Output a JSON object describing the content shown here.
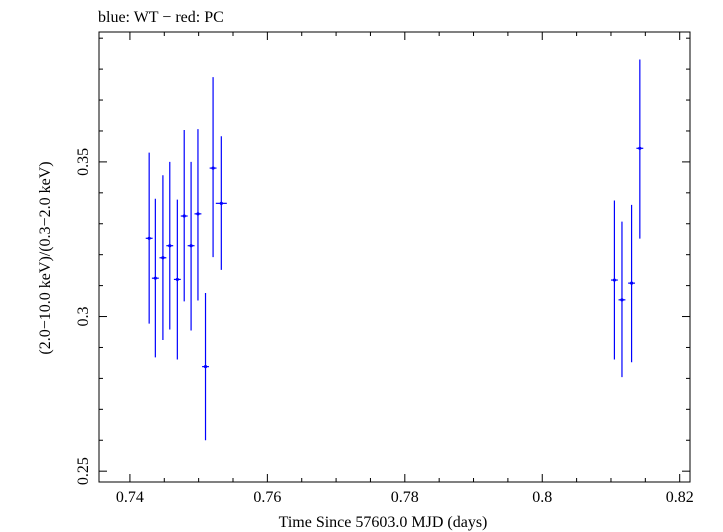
{
  "chart_data": {
    "type": "scatter",
    "title": "blue: WT − red: PC",
    "xlabel": "Time Since 57603.0 MJD (days)",
    "ylabel": "(2.0−10.0 keV)/(0.3−2.0 keV)",
    "xlim": [
      0.7355,
      0.8215
    ],
    "ylim": [
      0.2465,
      0.392
    ],
    "x_ticks": [
      0.74,
      0.76,
      0.78,
      0.8,
      0.82
    ],
    "x_tick_labels": [
      "0.74",
      "0.76",
      "0.78",
      "0.8",
      "0.82"
    ],
    "y_ticks": [
      0.25,
      0.3,
      0.35
    ],
    "y_tick_labels": [
      "0.25",
      "0.3",
      "0.35"
    ],
    "grid": false,
    "series": [
      {
        "name": "WT",
        "color": "#0000ff",
        "points": [
          {
            "x": 0.7428,
            "y": 0.3253,
            "xerr": 0.0005,
            "ylo": 0.2977,
            "yhi": 0.353
          },
          {
            "x": 0.7437,
            "y": 0.3124,
            "xerr": 0.0005,
            "ylo": 0.2868,
            "yhi": 0.3381
          },
          {
            "x": 0.7448,
            "y": 0.319,
            "xerr": 0.0005,
            "ylo": 0.2924,
            "yhi": 0.3457
          },
          {
            "x": 0.7458,
            "y": 0.3229,
            "xerr": 0.0005,
            "ylo": 0.2958,
            "yhi": 0.35
          },
          {
            "x": 0.7469,
            "y": 0.312,
            "xerr": 0.0005,
            "ylo": 0.2861,
            "yhi": 0.3378
          },
          {
            "x": 0.7479,
            "y": 0.3325,
            "xerr": 0.0005,
            "ylo": 0.3049,
            "yhi": 0.3603
          },
          {
            "x": 0.7489,
            "y": 0.3229,
            "xerr": 0.0005,
            "ylo": 0.2955,
            "yhi": 0.35
          },
          {
            "x": 0.7499,
            "y": 0.3332,
            "xerr": 0.0005,
            "ylo": 0.3052,
            "yhi": 0.3606
          },
          {
            "x": 0.751,
            "y": 0.2838,
            "xerr": 0.0005,
            "ylo": 0.26,
            "yhi": 0.3076
          },
          {
            "x": 0.7521,
            "y": 0.348,
            "xerr": 0.0005,
            "ylo": 0.3192,
            "yhi": 0.3774
          },
          {
            "x": 0.7533,
            "y": 0.3366,
            "xerr": 0.0008,
            "ylo": 0.3151,
            "yhi": 0.3583
          },
          {
            "x": 0.8105,
            "y": 0.3118,
            "xerr": 0.0005,
            "ylo": 0.2861,
            "yhi": 0.3375
          },
          {
            "x": 0.8116,
            "y": 0.3054,
            "xerr": 0.0005,
            "ylo": 0.2804,
            "yhi": 0.3307
          },
          {
            "x": 0.813,
            "y": 0.3108,
            "xerr": 0.0005,
            "ylo": 0.2852,
            "yhi": 0.3361
          },
          {
            "x": 0.8142,
            "y": 0.3544,
            "xerr": 0.0005,
            "ylo": 0.3252,
            "yhi": 0.3831
          }
        ]
      }
    ]
  }
}
